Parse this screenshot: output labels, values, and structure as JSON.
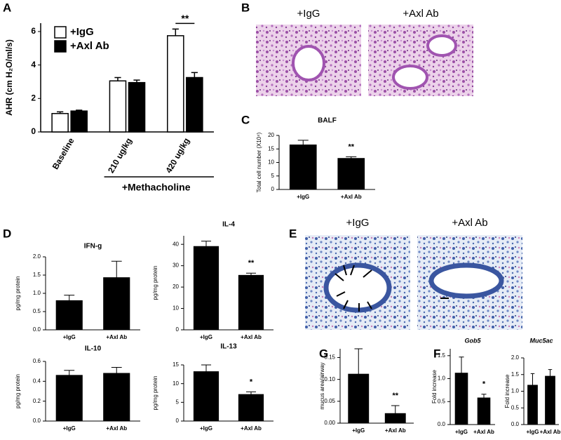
{
  "panels": [
    "A",
    "B",
    "C",
    "D",
    "E",
    "F",
    "G"
  ],
  "images": {
    "B": [
      {
        "label": "+IgG"
      },
      {
        "label": "+Axl Ab"
      }
    ],
    "E": [
      {
        "label": "+IgG"
      },
      {
        "label": "+Axl Ab"
      }
    ]
  },
  "chart_data": [
    {
      "type": "bar",
      "ylabel": "AHR (cm H₂O/ml/s)",
      "categories": [
        "Baseline",
        "210 ug/kg",
        "420 ug/kg"
      ],
      "series": [
        {
          "name": "+IgG",
          "color": "#ffffff",
          "values": [
            1.1,
            3.05,
            5.75
          ],
          "errors": [
            0.1,
            0.2,
            0.4
          ]
        },
        {
          "name": "+Axl Ab",
          "color": "#000000",
          "values": [
            1.25,
            2.95,
            3.25
          ],
          "errors": [
            0.05,
            0.15,
            0.3
          ]
        }
      ],
      "ylim": [
        0,
        6.5
      ],
      "yticks": [
        0,
        2,
        4,
        6
      ],
      "annotation": "**",
      "group_label": "+Methacholine"
    },
    {
      "type": "bar",
      "title": "BALF",
      "ylabel": "Total cell number (X10⁴)",
      "categories": [
        "+IgG",
        "+Axl Ab"
      ],
      "values": [
        16.5,
        11.5
      ],
      "errors": [
        1.7,
        0.6
      ],
      "color": "#000000",
      "ylim": [
        0,
        20
      ],
      "yticks": [
        0,
        5,
        10,
        15,
        20
      ],
      "annotation": "**"
    },
    {
      "type": "bar",
      "title": "IFN-g",
      "ylabel": "pg/mg protein",
      "categories": [
        "+IgG",
        "+Axl Ab"
      ],
      "values": [
        0.8,
        1.43
      ],
      "errors": [
        0.15,
        0.45
      ],
      "color": "#000000",
      "ylim": [
        0,
        2
      ],
      "yticks": [
        {
          "value": 0,
          "label": "0.0"
        },
        0.5,
        {
          "value": 1,
          "label": "1.0"
        },
        1.5,
        {
          "value": 2,
          "label": "2.0"
        }
      ]
    },
    {
      "type": "bar",
      "title": "IL-4",
      "ylabel": "pg/mg protein",
      "categories": [
        "+IgG",
        "+Axl Ab"
      ],
      "values": [
        39,
        25.5
      ],
      "errors": [
        2.5,
        1
      ],
      "color": "#000000",
      "ylim": [
        0,
        44
      ],
      "yticks": [
        0,
        10,
        20,
        30,
        40
      ],
      "annotation": "**"
    },
    {
      "type": "bar",
      "title": "IL-10",
      "ylabel": "pg/mg protein",
      "categories": [
        "+IgG",
        "+Axl Ab"
      ],
      "values": [
        0.46,
        0.48
      ],
      "errors": [
        0.05,
        0.06
      ],
      "color": "#000000",
      "ylim": [
        0,
        0.6
      ],
      "yticks": [
        {
          "value": 0,
          "label": "0.0"
        },
        0.2,
        0.4,
        0.6
      ]
    },
    {
      "type": "bar",
      "title": "IL-13",
      "ylabel": "pg/mg protein",
      "categories": [
        "+IgG",
        "+Axl Ab"
      ],
      "values": [
        13.2,
        7.1
      ],
      "errors": [
        1.8,
        0.7
      ],
      "color": "#000000",
      "ylim": [
        0,
        15
      ],
      "yticks": [
        0,
        5,
        10,
        15
      ],
      "annotation": "*"
    },
    {
      "type": "bar",
      "ylabel": "mucus area/airway",
      "categories": [
        "+IgG",
        "+Axl Ab"
      ],
      "values": [
        0.112,
        0.022
      ],
      "errors": [
        0.058,
        0.018
      ],
      "color": "#000000",
      "ylim": [
        0,
        0.17
      ],
      "yticks": [
        {
          "value": 0,
          "label": "0.00"
        },
        0.05,
        {
          "value": 0.1,
          "label": "0.10"
        },
        0.15
      ],
      "annotation": "**"
    },
    {
      "type": "bar",
      "title": "Gob5",
      "ylabel": "Fold increase",
      "categories": [
        "+IgG",
        "+Axl Ab"
      ],
      "values": [
        1.12,
        0.58
      ],
      "errors": [
        0.35,
        0.08
      ],
      "color": "#000000",
      "ylim": [
        0,
        1.65
      ],
      "yticks": [
        {
          "value": 0,
          "label": "0.0"
        },
        0.5,
        {
          "value": 1,
          "label": "1.0"
        },
        1.5
      ],
      "annotation": "*"
    },
    {
      "type": "bar",
      "title": "Muc5ac",
      "ylabel": "Fold increase",
      "categories": [
        "+IgG",
        "+Axl Ab"
      ],
      "values": [
        1.18,
        1.45
      ],
      "errors": [
        0.35,
        0.2
      ],
      "color": "#000000",
      "ylim": [
        0,
        2
      ],
      "yticks": [
        {
          "value": 0,
          "label": "0.0"
        },
        0.5,
        {
          "value": 1,
          "label": "1.0"
        },
        1.5,
        {
          "value": 2,
          "label": "2.0"
        }
      ]
    }
  ]
}
